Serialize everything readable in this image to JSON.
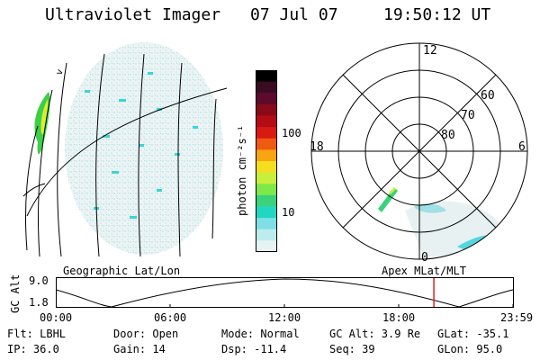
{
  "header": {
    "instrument": "Ultraviolet Imager",
    "date": "07 Jul 07",
    "time": "19:50:12 UT"
  },
  "colorbar": {
    "unit_label": "photon cm⁻²s⁻¹",
    "ticks": [
      "100",
      "10"
    ],
    "colors": [
      "#000000",
      "#3a0c24",
      "#5c0a2e",
      "#8a0a1a",
      "#b40c14",
      "#d81a12",
      "#ee5a10",
      "#f7a510",
      "#f5dd20",
      "#c8ef3c",
      "#7ee84a",
      "#3ad27a",
      "#22d7c2",
      "#7ee0e6",
      "#bdecee",
      "#e6f3f3"
    ]
  },
  "polar_plot": {
    "mlt_labels": [
      "12",
      "18",
      "6",
      "0"
    ],
    "lat_labels": [
      "60",
      "70",
      "80"
    ]
  },
  "timeline": {
    "left_title": "Geographic Lat/Lon",
    "right_title": "Apex MLat/MLT",
    "y_axis_label": "GC Alt",
    "y_ticks": [
      "9.0",
      "1.8"
    ],
    "x_ticks": [
      "00:00",
      "06:00",
      "12:00",
      "18:00",
      "23:59"
    ],
    "marker_time": "19:50",
    "marker_color": "#e02020"
  },
  "footer": {
    "row1": {
      "flt": "Flt: LBHL",
      "door": "Door: Open",
      "mode": "Mode: Normal",
      "gc_alt": "GC Alt: 3.9 Re",
      "glat": "GLat: -35.1"
    },
    "row2": {
      "ip": "IP: 36.0",
      "gain": "Gain: 14",
      "dsp": "Dsp:  -11.4",
      "seq": "Seq: 39",
      "glon": "GLon:  95.0"
    }
  }
}
